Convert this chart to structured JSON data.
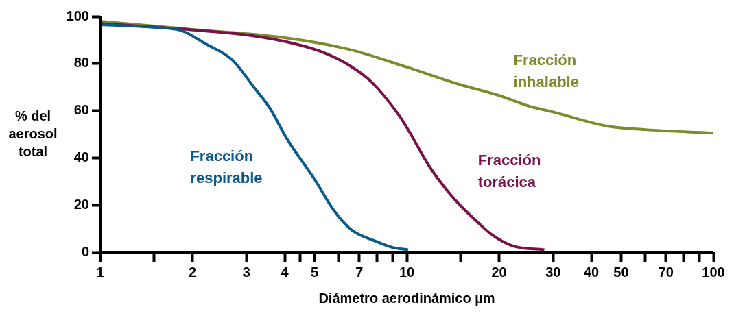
{
  "chart_data": {
    "type": "line",
    "xlabel": "Diámetro aerodinámico µm",
    "ylabel": "% del aerosol total",
    "log": "x",
    "grid": false,
    "legend": false,
    "marker": "none",
    "line_style": "solid",
    "xlim": [
      1,
      100
    ],
    "ylim": [
      0,
      100
    ],
    "yticks": [
      0,
      20,
      40,
      60,
      80,
      100
    ],
    "xticks": [
      1,
      {
        "value": 1.5,
        "label": null
      },
      2,
      3,
      4,
      {
        "value": 4.5,
        "label": null
      },
      5,
      {
        "value": 6,
        "label": null
      },
      7,
      {
        "value": 8,
        "label": null
      },
      {
        "value": 9,
        "label": null
      },
      10,
      {
        "value": 15,
        "label": null
      },
      20,
      30,
      40,
      50,
      {
        "value": 60,
        "label": null
      },
      70,
      {
        "value": 80,
        "label": null
      },
      {
        "value": 90,
        "label": null
      },
      100
    ],
    "series": [
      {
        "name": "Fracción respirable",
        "color": "#0b5a8c",
        "x": [
          1,
          1.54,
          1.84,
          2.2,
          2.7,
          3.15,
          3.58,
          4.07,
          5,
          5.8,
          6.6,
          7.9,
          9,
          10.1
        ],
        "values": [
          96.5,
          95.3,
          94,
          88.5,
          81.5,
          70.5,
          61,
          48,
          31,
          17.5,
          9.5,
          4.7,
          2,
          1
        ]
      },
      {
        "name": "Fracción torácica",
        "color": "#7a1048",
        "x": [
          1,
          1.7,
          3.07,
          4.28,
          5.4,
          6.45,
          7.7,
          9.5,
          10.2,
          11.9,
          14.3,
          17.1,
          18.9,
          22.1,
          28.1
        ],
        "values": [
          97,
          95,
          92,
          88.5,
          84.5,
          79.5,
          72,
          57.5,
          51,
          36,
          22.5,
          12.5,
          7.5,
          2.7,
          1
        ]
      },
      {
        "name": "Fracción inhalable",
        "color": "#7f8a2e",
        "x": [
          1,
          2,
          4,
          6.5,
          10,
          15,
          20,
          25,
          30,
          45,
          60,
          100
        ],
        "values": [
          98,
          94.5,
          91,
          86,
          78.5,
          71,
          66.5,
          62,
          59.5,
          53.5,
          52,
          50.5
        ]
      }
    ]
  }
}
